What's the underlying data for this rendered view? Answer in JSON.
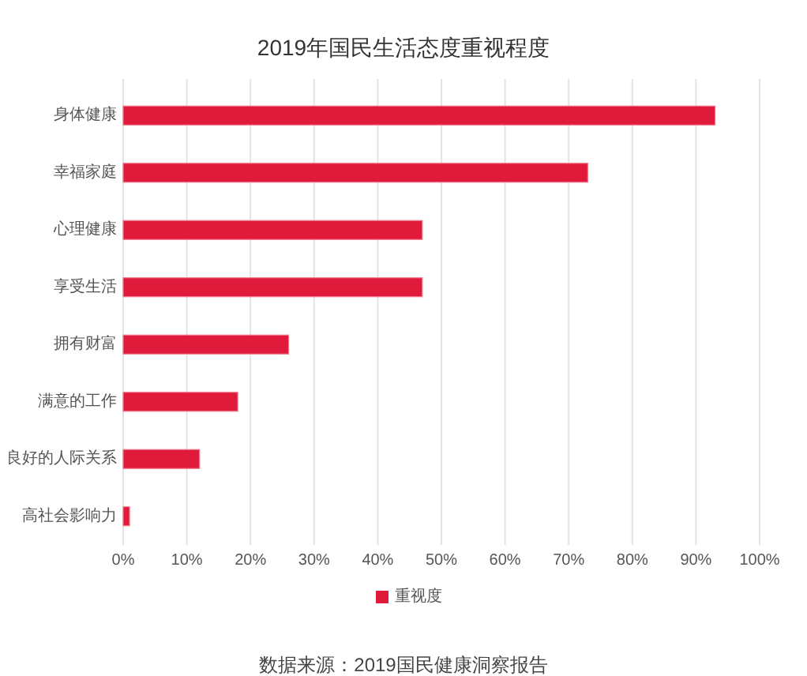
{
  "chart_data": {
    "type": "bar",
    "orientation": "horizontal",
    "title": "2019年国民生活态度重视程度",
    "categories": [
      "身体健康",
      "幸福家庭",
      "心理健康",
      "享受生活",
      "拥有财富",
      "满意的工作",
      "良好的人际关系",
      "高社会影响力"
    ],
    "series": [
      {
        "name": "重视度",
        "color": "#e01a3b",
        "values": [
          93,
          73,
          47,
          47,
          26,
          18,
          12,
          1
        ]
      }
    ],
    "xlim": [
      0,
      100
    ],
    "xticks": [
      {
        "value": 0,
        "label": "0%"
      },
      {
        "value": 10,
        "label": "10%"
      },
      {
        "value": 20,
        "label": "20%"
      },
      {
        "value": 30,
        "label": "30%"
      },
      {
        "value": 40,
        "label": "40%"
      },
      {
        "value": 50,
        "label": "50%"
      },
      {
        "value": 60,
        "label": "60%"
      },
      {
        "value": 70,
        "label": "70%"
      },
      {
        "value": 80,
        "label": "80%"
      },
      {
        "value": 90,
        "label": "90%"
      },
      {
        "value": 100,
        "label": "100%"
      }
    ],
    "grid": "x",
    "legend": "bottom",
    "annotations": [
      "数据来源：2019国民健康洞察报告"
    ]
  }
}
